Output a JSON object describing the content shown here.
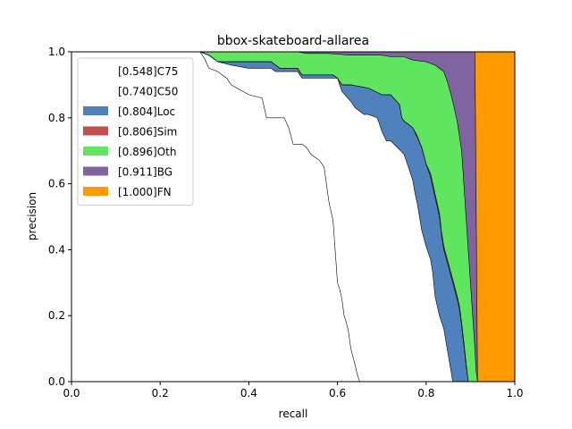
{
  "chart_data": {
    "type": "area",
    "title": "bbox-skateboard-allarea",
    "xlabel": "recall",
    "ylabel": "precision",
    "xlim": [
      0,
      1
    ],
    "ylim": [
      0,
      1
    ],
    "xticks": [
      "0.0",
      "0.2",
      "0.4",
      "0.6",
      "0.8",
      "1.0"
    ],
    "yticks": [
      "0.0",
      "0.2",
      "0.4",
      "0.6",
      "0.8",
      "1.0"
    ],
    "grid": false,
    "legend_position": "top-left",
    "legend": [
      {
        "label": "[0.548]C75",
        "color": "#ffffff"
      },
      {
        "label": "[0.740]C50",
        "color": "#ffffff"
      },
      {
        "label": "[0.804]Loc",
        "color": "#4f81bd"
      },
      {
        "label": "[0.806]Sim",
        "color": "#c0504d"
      },
      {
        "label": "[0.896]Oth",
        "color": "#5ee65e"
      },
      {
        "label": "[0.911]BG",
        "color": "#8064a2"
      },
      {
        "label": "[1.000]FN",
        "color": "#ff9900"
      }
    ],
    "series": [
      {
        "name": "[0.548]C75",
        "fill": "#ffffff",
        "x": [
          0.29,
          0.3,
          0.31,
          0.33,
          0.35,
          0.36,
          0.4,
          0.43,
          0.44,
          0.48,
          0.49,
          0.5,
          0.52,
          0.53,
          0.54,
          0.55,
          0.56,
          0.57,
          0.58,
          0.583,
          0.59,
          0.6,
          0.605,
          0.61,
          0.615,
          0.62,
          0.625,
          0.63,
          0.64,
          0.645,
          0.65
        ],
        "y": [
          1.0,
          0.98,
          0.95,
          0.94,
          0.92,
          0.9,
          0.87,
          0.86,
          0.8,
          0.8,
          0.77,
          0.72,
          0.72,
          0.71,
          0.69,
          0.68,
          0.67,
          0.65,
          0.55,
          0.53,
          0.49,
          0.3,
          0.28,
          0.25,
          0.2,
          0.18,
          0.15,
          0.1,
          0.05,
          0.02,
          0.0
        ]
      },
      {
        "name": "[0.740]C50",
        "fill": "#ffffff",
        "x": [
          0.29,
          0.31,
          0.33,
          0.36,
          0.4,
          0.45,
          0.46,
          0.47,
          0.51,
          0.52,
          0.6,
          0.61,
          0.63,
          0.64,
          0.65,
          0.66,
          0.67,
          0.69,
          0.7,
          0.71,
          0.72,
          0.75,
          0.76,
          0.77,
          0.775,
          0.78,
          0.79,
          0.8,
          0.81,
          0.815,
          0.82,
          0.83,
          0.84,
          0.845,
          0.85,
          0.855,
          0.86
        ],
        "y": [
          1.0,
          0.99,
          0.97,
          0.96,
          0.95,
          0.95,
          0.94,
          0.94,
          0.94,
          0.92,
          0.92,
          0.88,
          0.85,
          0.83,
          0.82,
          0.81,
          0.81,
          0.8,
          0.76,
          0.73,
          0.73,
          0.69,
          0.65,
          0.61,
          0.57,
          0.54,
          0.46,
          0.41,
          0.37,
          0.33,
          0.26,
          0.2,
          0.16,
          0.12,
          0.08,
          0.04,
          0.0
        ]
      },
      {
        "name": "[0.804]Loc",
        "fill": "#4f81bd",
        "x": [
          0.29,
          0.31,
          0.33,
          0.36,
          0.4,
          0.45,
          0.46,
          0.47,
          0.51,
          0.52,
          0.59,
          0.6,
          0.61,
          0.63,
          0.67,
          0.7,
          0.72,
          0.74,
          0.745,
          0.75,
          0.76,
          0.77,
          0.78,
          0.79,
          0.8,
          0.81,
          0.82,
          0.83,
          0.835,
          0.84,
          0.85,
          0.86,
          0.87,
          0.875,
          0.88,
          0.885,
          0.89,
          0.895
        ],
        "y": [
          1.0,
          0.99,
          0.97,
          0.97,
          0.97,
          0.97,
          0.96,
          0.95,
          0.95,
          0.93,
          0.93,
          0.92,
          0.9,
          0.9,
          0.89,
          0.87,
          0.87,
          0.84,
          0.8,
          0.79,
          0.78,
          0.77,
          0.74,
          0.71,
          0.66,
          0.62,
          0.56,
          0.5,
          0.44,
          0.4,
          0.35,
          0.3,
          0.25,
          0.22,
          0.17,
          0.11,
          0.05,
          0.0
        ]
      },
      {
        "name": "[0.806]Sim",
        "fill": "#c0504d",
        "x": [
          0.29,
          0.31,
          0.33,
          0.36,
          0.4,
          0.45,
          0.46,
          0.47,
          0.51,
          0.52,
          0.59,
          0.6,
          0.61,
          0.63,
          0.67,
          0.7,
          0.72,
          0.74,
          0.745,
          0.75,
          0.76,
          0.77,
          0.78,
          0.79,
          0.8,
          0.81,
          0.82,
          0.83,
          0.835,
          0.84,
          0.85,
          0.86,
          0.87,
          0.875,
          0.88,
          0.885,
          0.89,
          0.895
        ],
        "y": [
          1.0,
          0.99,
          0.97,
          0.97,
          0.97,
          0.97,
          0.96,
          0.95,
          0.95,
          0.93,
          0.93,
          0.92,
          0.9,
          0.9,
          0.89,
          0.87,
          0.87,
          0.84,
          0.8,
          0.79,
          0.78,
          0.77,
          0.745,
          0.71,
          0.66,
          0.63,
          0.57,
          0.51,
          0.45,
          0.41,
          0.36,
          0.31,
          0.26,
          0.23,
          0.18,
          0.12,
          0.06,
          0.0
        ]
      },
      {
        "name": "[0.896]Oth",
        "fill": "#5ee65e",
        "x": [
          0.29,
          0.31,
          0.4,
          0.45,
          0.47,
          0.49,
          0.51,
          0.53,
          0.58,
          0.63,
          0.7,
          0.72,
          0.75,
          0.77,
          0.8,
          0.82,
          0.84,
          0.85,
          0.86,
          0.87,
          0.88,
          0.885,
          0.89,
          0.895,
          0.9,
          0.905,
          0.91,
          0.913,
          0.916
        ],
        "y": [
          1.0,
          1.0,
          1.0,
          1.0,
          1.0,
          1.0,
          1.0,
          0.995,
          0.995,
          0.99,
          0.99,
          0.985,
          0.985,
          0.975,
          0.97,
          0.96,
          0.94,
          0.9,
          0.85,
          0.79,
          0.7,
          0.6,
          0.5,
          0.4,
          0.3,
          0.2,
          0.1,
          0.03,
          0.0
        ]
      },
      {
        "name": "[0.911]BG",
        "fill": "#8064a2",
        "x": [
          0.78,
          0.91,
          0.916
        ],
        "y": [
          1.0,
          1.0,
          0.0
        ]
      },
      {
        "name": "[1.000]FN",
        "fill": "#ff9900",
        "x": [
          0.91,
          1.0,
          1.0,
          0.916
        ],
        "y": [
          1.0,
          1.0,
          0.0,
          0.0
        ]
      }
    ]
  }
}
